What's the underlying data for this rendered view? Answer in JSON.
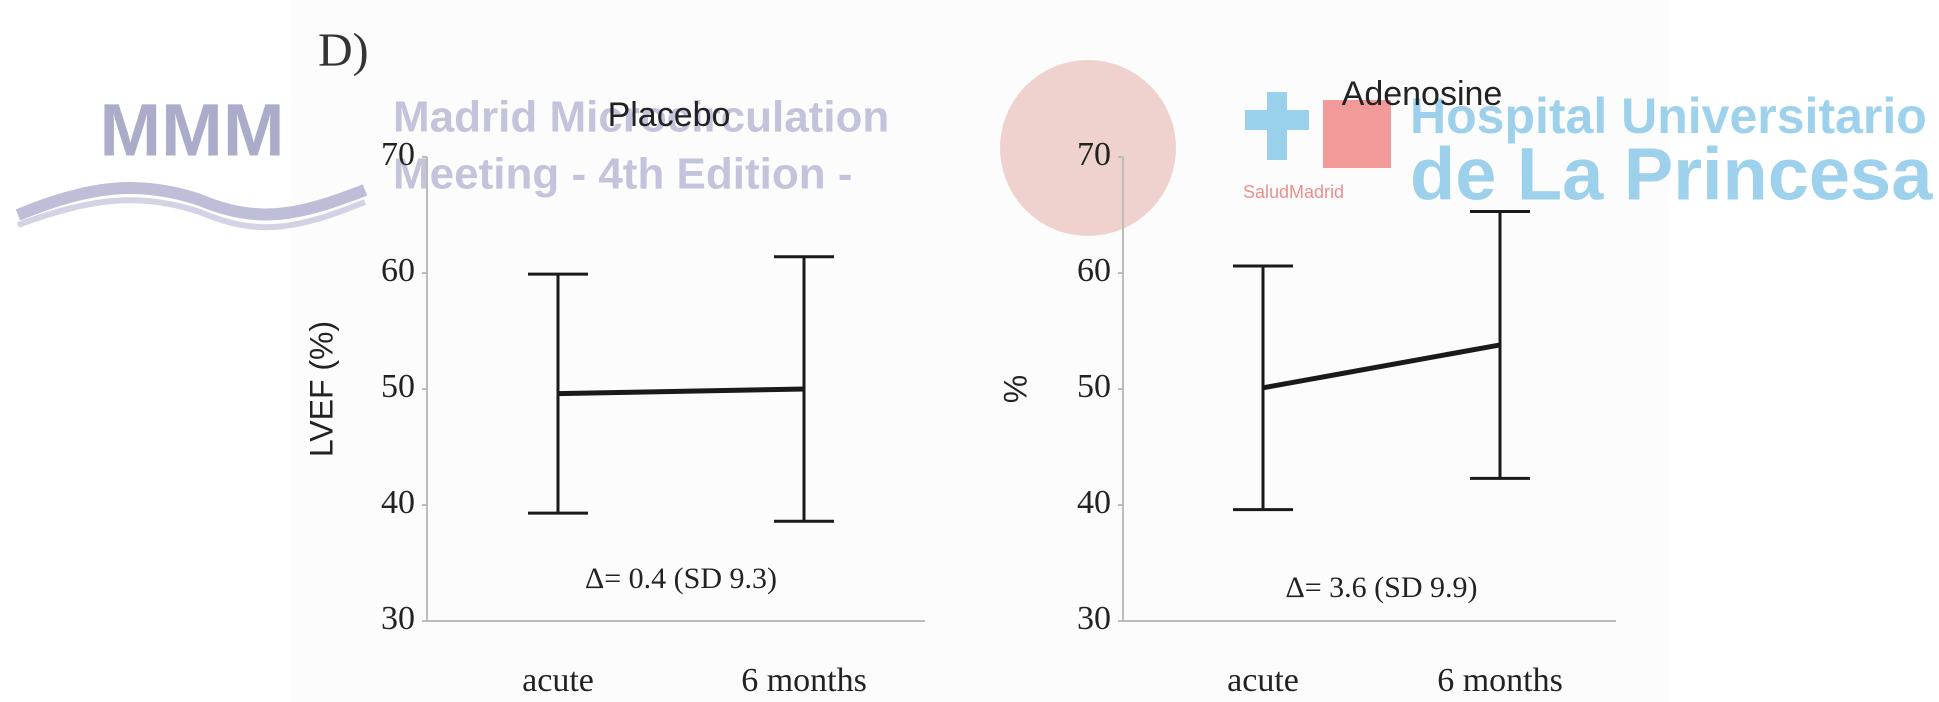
{
  "header": {
    "label": "D)"
  },
  "watermark": {
    "logo": "MMM",
    "meeting_line1": "Madrid Microcirculation",
    "meeting_line2": "Meeting - 4th Edition -",
    "hospital_line1": "Hospital Universitario",
    "hospital_line2": "de La Princesa",
    "health_service": "SaludMadrid"
  },
  "chart_data": [
    {
      "type": "line",
      "title": "Placebo",
      "y_label": "LVEF (%)",
      "annotation": "Δ= 0.4 (SD 9.3)",
      "categories": [
        "acute",
        "6 months"
      ],
      "series": [
        {
          "color": "#1a1a1a",
          "values": [
            49.6,
            50.0
          ],
          "errors": [
            10.3,
            11.4
          ]
        }
      ],
      "ylim": [
        30,
        70
      ],
      "yticks": [
        30,
        40,
        50,
        60,
        70
      ]
    },
    {
      "type": "line",
      "title": "Adenosine",
      "y_label": "%",
      "annotation": "Δ= 3.6 (SD 9.9)",
      "categories": [
        "acute",
        "6 months"
      ],
      "series": [
        {
          "color": "#1a1a1a",
          "values": [
            50.1,
            53.8
          ],
          "errors": [
            10.5,
            11.5
          ]
        }
      ],
      "ylim": [
        30,
        70
      ],
      "yticks": [
        30,
        40,
        50,
        60,
        70
      ]
    }
  ]
}
